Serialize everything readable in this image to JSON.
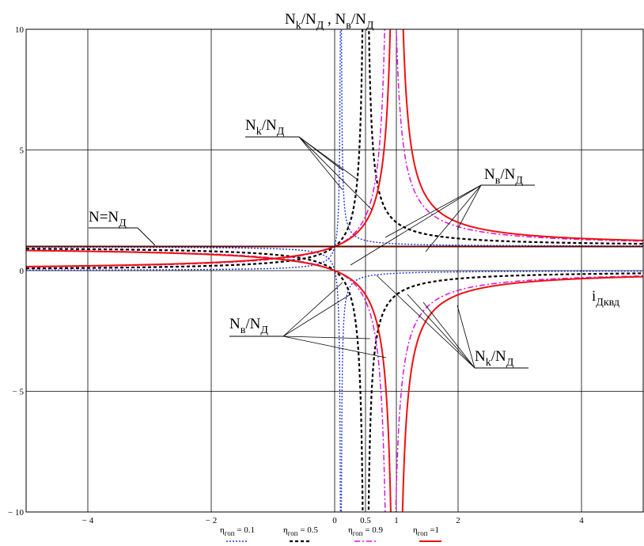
{
  "chart_data": {
    "type": "line",
    "title": "",
    "xlim": [
      -5,
      5
    ],
    "ylim": [
      -10,
      10
    ],
    "grid": true,
    "legend_position": "bottom",
    "x_ticks": [
      -4,
      -2,
      0,
      0.5,
      1,
      2,
      4
    ],
    "x_tick_labels": [
      "− 4",
      "− 2",
      "0",
      "0.5",
      "1",
      "2",
      "4"
    ],
    "y_ticks": [
      -10,
      -5,
      0,
      5,
      10
    ],
    "y_tick_labels": [
      "− 10",
      "− 5",
      "0",
      "5",
      "10"
    ],
    "axis_title_y": {
      "parts": [
        "N",
        "k",
        "/N",
        "Д",
        " , N",
        "в",
        "/N",
        "Д"
      ]
    },
    "axis_title_x": {
      "parts": [
        "i",
        "Дквд"
      ]
    },
    "reference_line": {
      "label_parts": [
        "N=N",
        "Д"
      ],
      "y": 1,
      "color": "#5a0a0a"
    },
    "annotations": [
      {
        "id": "nk-top",
        "parts": [
          "N",
          "k",
          "/N",
          "Д"
        ]
      },
      {
        "id": "nv-top",
        "parts": [
          "N",
          "в",
          "/N",
          "Д"
        ]
      },
      {
        "id": "nv-bottom",
        "parts": [
          "N",
          "в",
          "/N",
          "Д"
        ]
      },
      {
        "id": "nk-bottom",
        "parts": [
          "N",
          "k",
          "/N",
          "Д"
        ]
      }
    ],
    "series": [
      {
        "name": "η_гоп = 0.1",
        "name_parts": [
          "η",
          "гоп",
          " = 0.1"
        ],
        "eta": 0.1,
        "color": "#2233dd",
        "style": "dotted"
      },
      {
        "name": "η_гоп = 0.5",
        "name_parts": [
          "η",
          "гоп",
          " = 0.5"
        ],
        "eta": 0.5,
        "color": "#000000",
        "style": "dashed"
      },
      {
        "name": "η_гоп = 0.9",
        "name_parts": [
          "η",
          "гоп",
          " = 0.9"
        ],
        "eta": 0.9,
        "color": "#dd11dd",
        "style": "dashdot"
      },
      {
        "name": "η_гоп = 1",
        "name_parts": [
          "η",
          "гоп",
          " =1"
        ],
        "eta": 1,
        "color": "#ee1111",
        "style": "solid"
      }
    ],
    "functions": {
      "Nk_over_Nd": "x / (x - eta)",
      "Nv_over_Nd": "-eta / (x - eta)"
    }
  }
}
